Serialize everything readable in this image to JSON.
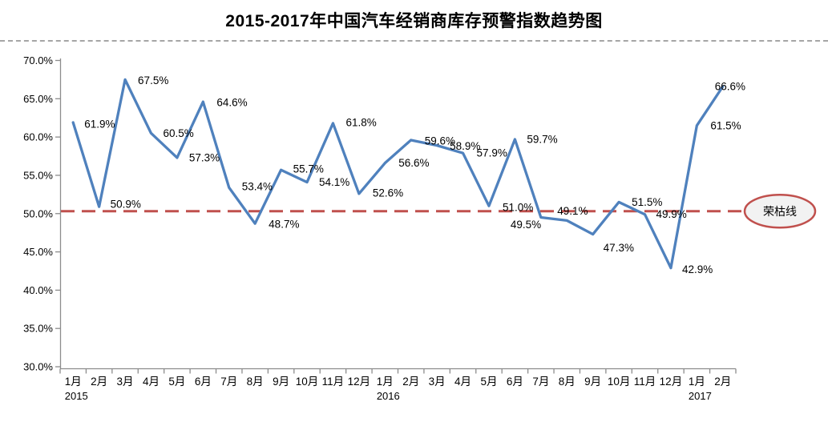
{
  "title": "2015-2017年中国汽车经销商库存预警指数趋势图",
  "chart_data": {
    "type": "line",
    "title": "2015-2017年中国汽车经销商库存预警指数趋势图",
    "categories": [
      "1月",
      "2月",
      "3月",
      "4月",
      "5月",
      "6月",
      "7月",
      "8月",
      "9月",
      "10月",
      "11月",
      "12月",
      "1月",
      "2月",
      "3月",
      "4月",
      "5月",
      "6月",
      "7月",
      "8月",
      "9月",
      "10月",
      "11月",
      "12月",
      "1月",
      "2月"
    ],
    "year_labels": [
      {
        "index": 0,
        "text": "2015"
      },
      {
        "index": 12,
        "text": "2016"
      },
      {
        "index": 24,
        "text": "2017"
      }
    ],
    "values": [
      61.9,
      50.9,
      67.5,
      60.5,
      57.3,
      64.6,
      53.4,
      48.7,
      55.7,
      54.1,
      61.8,
      52.6,
      56.6,
      59.6,
      58.9,
      57.9,
      51.0,
      59.7,
      49.5,
      49.1,
      47.3,
      51.5,
      49.9,
      42.9,
      61.5,
      66.6
    ],
    "point_labels": [
      "61.9%",
      "50.9%",
      "67.5%",
      "60.5%",
      "57.3%",
      "64.6%",
      "53.4%",
      "48.7%",
      "55.7%",
      "54.1%",
      "61.8%",
      "52.6%",
      "56.6%",
      "59.6%",
      "58.9%",
      "57.9%",
      "51.0%",
      "59.7%",
      "49.5%",
      "49.1%",
      "47.3%",
      "51.5%",
      "49.9%",
      "42.9%",
      "61.5%",
      "66.6%"
    ],
    "y_axis": {
      "min": 30,
      "max": 70,
      "step": 5,
      "tick_labels": [
        "70.0%",
        "65.0%",
        "60.0%",
        "55.0%",
        "50.0%",
        "45.0%",
        "40.0%",
        "35.0%",
        "30.0%"
      ]
    },
    "reference_line": {
      "value": 50,
      "label": "荣枯线"
    },
    "colors": {
      "line": "#4F81BD",
      "reference": "#C0504D",
      "axis": "#8C8C8C",
      "separator": "#A6A6A6",
      "annotation_fill": "#F2F2F2",
      "label_text": "#000000"
    },
    "grid": false,
    "legend": "none"
  }
}
